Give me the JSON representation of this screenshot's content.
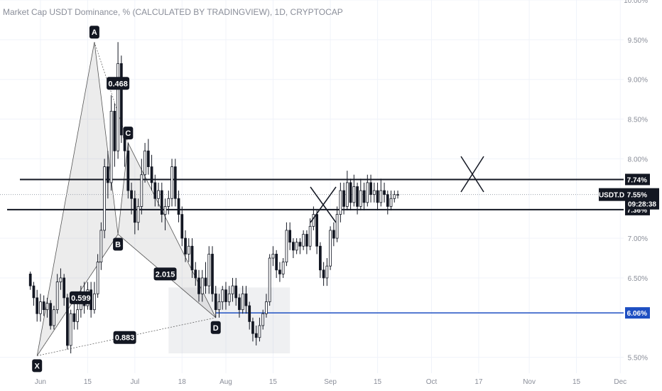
{
  "chart_data": {
    "type": "candlestick",
    "title": "Market Cap USDT Dominance, % (CALCULATED BY TRADINGVIEW), 1D, CRYPTOCAP",
    "symbol": "USDT.D",
    "last_value": "7.55%",
    "countdown": "09:28:38",
    "y_axis": {
      "scale": "linear",
      "range": [
        5.3,
        10.0
      ],
      "ticks": [
        {
          "value": 10.0,
          "label": "10.00%"
        },
        {
          "value": 9.5,
          "label": "9.50%"
        },
        {
          "value": 9.0,
          "label": "9.00%"
        },
        {
          "value": 8.5,
          "label": "8.50%"
        },
        {
          "value": 8.0,
          "label": "8.00%"
        },
        {
          "value": 7.0,
          "label": "7.00%"
        },
        {
          "value": 6.5,
          "label": "6.50%"
        },
        {
          "value": 5.5,
          "label": "5.50%"
        }
      ]
    },
    "x_axis": {
      "range": [
        -9,
        176
      ],
      "ticks": [
        {
          "day": 3,
          "label": "Jun"
        },
        {
          "day": 17,
          "label": "15"
        },
        {
          "day": 31,
          "label": "Jul"
        },
        {
          "day": 45,
          "label": "18"
        },
        {
          "day": 58,
          "label": "Aug"
        },
        {
          "day": 72,
          "label": "15"
        },
        {
          "day": 89,
          "label": "Sep"
        },
        {
          "day": 103,
          "label": "15"
        },
        {
          "day": 119,
          "label": "Oct"
        },
        {
          "day": 133,
          "label": "17"
        },
        {
          "day": 148,
          "label": "Nov"
        },
        {
          "day": 162,
          "label": "15"
        },
        {
          "day": 175,
          "label": "Dec"
        }
      ]
    },
    "levels": [
      {
        "value": 7.74,
        "label": "7.74%",
        "color": "#131722"
      },
      {
        "value": 7.36,
        "label": "7.36%",
        "color": "#131722"
      },
      {
        "value": 6.06,
        "label": "6.06%",
        "color": "#1e4fc2"
      }
    ],
    "harmonic_pattern": {
      "points": [
        {
          "name": "X",
          "day": 2,
          "value": 5.52
        },
        {
          "name": "A",
          "day": 19,
          "value": 9.47
        },
        {
          "name": "B",
          "day": 26,
          "value": 7.05
        },
        {
          "name": "C",
          "day": 29,
          "value": 8.2
        },
        {
          "name": "D",
          "day": 55,
          "value": 6.0
        }
      ],
      "ratios": [
        {
          "label": "0.468",
          "day": 26,
          "value": 8.95
        },
        {
          "label": "0.599",
          "day": 15,
          "value": 6.25
        },
        {
          "label": "2.015",
          "day": 40,
          "value": 6.55
        },
        {
          "label": "0.883",
          "day": 28,
          "value": 5.75
        }
      ]
    },
    "shaded_zone": {
      "day_start": 41,
      "day_end": 77,
      "value_top": 6.38,
      "value_bottom": 5.55
    },
    "candles": [
      [
        6.55,
        6.4,
        6.58,
        6.35
      ],
      [
        6.4,
        6.25,
        6.45,
        6.15
      ],
      [
        6.25,
        6.05,
        6.35,
        5.95
      ],
      [
        6.05,
        6.2,
        6.3,
        5.95
      ],
      [
        6.2,
        6.1,
        6.28,
        6.02
      ],
      [
        6.1,
        6.18,
        6.25,
        6.0
      ],
      [
        6.18,
        5.9,
        6.22,
        5.85
      ],
      [
        5.9,
        6.1,
        6.15,
        5.85
      ],
      [
        6.1,
        6.45,
        6.55,
        6.05
      ],
      [
        6.45,
        6.5,
        6.62,
        6.35
      ],
      [
        6.5,
        6.25,
        6.55,
        6.15
      ],
      [
        6.25,
        5.65,
        6.3,
        5.6
      ],
      [
        5.65,
        6.05,
        6.1,
        5.55
      ],
      [
        6.05,
        5.95,
        6.2,
        5.85
      ],
      [
        5.95,
        6.1,
        6.2,
        5.85
      ],
      [
        6.1,
        6.3,
        6.4,
        6.0
      ],
      [
        6.3,
        6.15,
        6.45,
        6.05
      ],
      [
        6.15,
        6.35,
        6.45,
        6.1
      ],
      [
        6.35,
        6.1,
        6.45,
        6.0
      ],
      [
        6.1,
        6.3,
        6.45,
        6.05
      ],
      [
        6.3,
        6.7,
        6.8,
        6.25
      ],
      [
        6.7,
        7.1,
        7.2,
        6.6
      ],
      [
        7.1,
        7.9,
        8.0,
        7.0
      ],
      [
        7.9,
        7.7,
        8.1,
        7.5
      ],
      [
        7.7,
        8.6,
        8.8,
        7.6
      ],
      [
        8.6,
        8.1,
        8.7,
        7.9
      ],
      [
        8.1,
        9.2,
        9.47,
        8.0
      ],
      [
        9.2,
        8.3,
        9.3,
        8.2
      ],
      [
        8.3,
        8.1,
        8.4,
        7.9
      ],
      [
        8.1,
        7.6,
        8.2,
        7.5
      ],
      [
        7.6,
        7.5,
        7.7,
        7.3
      ],
      [
        7.5,
        7.2,
        7.6,
        7.05
      ],
      [
        7.2,
        7.4,
        7.5,
        7.1
      ],
      [
        7.4,
        7.8,
        8.0,
        7.3
      ],
      [
        7.8,
        8.1,
        8.2,
        7.7
      ],
      [
        8.1,
        7.9,
        8.25,
        7.8
      ],
      [
        7.9,
        7.7,
        8.05,
        7.6
      ],
      [
        7.7,
        7.5,
        7.8,
        7.4
      ],
      [
        7.5,
        7.6,
        7.7,
        7.4
      ],
      [
        7.6,
        7.3,
        7.7,
        7.2
      ],
      [
        7.3,
        7.4,
        7.5,
        7.1
      ],
      [
        7.4,
        7.5,
        7.6,
        7.3
      ],
      [
        7.5,
        7.9,
        8.0,
        7.4
      ],
      [
        7.9,
        7.5,
        8.0,
        7.4
      ],
      [
        7.5,
        7.3,
        7.6,
        7.2
      ],
      [
        7.3,
        7.0,
        7.4,
        6.9
      ],
      [
        7.0,
        6.8,
        7.1,
        6.7
      ],
      [
        6.8,
        6.9,
        7.0,
        6.7
      ],
      [
        6.9,
        6.6,
        7.0,
        6.5
      ],
      [
        6.6,
        6.5,
        6.7,
        6.4
      ],
      [
        6.5,
        6.3,
        6.6,
        6.2
      ],
      [
        6.3,
        6.5,
        6.6,
        6.2
      ],
      [
        6.5,
        6.4,
        6.7,
        6.3
      ],
      [
        6.4,
        6.8,
        6.9,
        6.3
      ],
      [
        6.8,
        6.3,
        6.9,
        6.2
      ],
      [
        6.3,
        6.1,
        6.4,
        6.0
      ],
      [
        6.1,
        6.2,
        6.3,
        6.0
      ],
      [
        6.2,
        6.35,
        6.4,
        6.1
      ],
      [
        6.35,
        6.2,
        6.45,
        6.1
      ],
      [
        6.2,
        6.3,
        6.4,
        6.15
      ],
      [
        6.3,
        6.4,
        6.5,
        6.2
      ],
      [
        6.4,
        6.25,
        6.5,
        6.15
      ],
      [
        6.25,
        6.1,
        6.3,
        6.0
      ],
      [
        6.1,
        6.3,
        6.4,
        6.05
      ],
      [
        6.3,
        6.15,
        6.4,
        6.05
      ],
      [
        6.15,
        5.95,
        6.2,
        5.85
      ],
      [
        5.95,
        5.8,
        6.0,
        5.7
      ],
      [
        5.8,
        5.75,
        5.9,
        5.65
      ],
      [
        5.75,
        5.9,
        6.0,
        5.7
      ],
      [
        5.9,
        6.05,
        6.1,
        5.85
      ],
      [
        6.05,
        6.2,
        6.3,
        6.0
      ],
      [
        6.2,
        6.75,
        6.8,
        6.15
      ],
      [
        6.75,
        6.8,
        6.9,
        6.65
      ],
      [
        6.8,
        6.6,
        6.85,
        6.5
      ],
      [
        6.6,
        6.55,
        6.7,
        6.45
      ],
      [
        6.55,
        6.7,
        6.75,
        6.5
      ],
      [
        6.7,
        7.1,
        7.2,
        6.65
      ],
      [
        7.1,
        6.95,
        7.2,
        6.85
      ],
      [
        6.95,
        6.85,
        7.0,
        6.75
      ],
      [
        6.85,
        6.95,
        7.0,
        6.8
      ],
      [
        6.95,
        6.9,
        7.0,
        6.8
      ],
      [
        6.9,
        7.05,
        7.1,
        6.85
      ],
      [
        7.05,
        6.9,
        7.1,
        6.8
      ],
      [
        6.9,
        7.15,
        7.25,
        6.85
      ],
      [
        7.15,
        7.3,
        7.4,
        7.1
      ],
      [
        7.3,
        6.9,
        7.35,
        6.8
      ],
      [
        6.9,
        6.6,
        6.95,
        6.5
      ],
      [
        6.6,
        6.5,
        6.7,
        6.4
      ],
      [
        6.5,
        6.65,
        6.75,
        6.4
      ],
      [
        6.65,
        7.1,
        7.15,
        6.6
      ],
      [
        7.1,
        7.0,
        7.2,
        6.9
      ],
      [
        7.0,
        7.3,
        7.4,
        6.95
      ],
      [
        7.3,
        7.6,
        7.7,
        7.2
      ],
      [
        7.6,
        7.4,
        7.7,
        7.3
      ],
      [
        7.4,
        7.7,
        7.85,
        7.35
      ],
      [
        7.7,
        7.45,
        7.75,
        7.35
      ],
      [
        7.45,
        7.65,
        7.8,
        7.4
      ],
      [
        7.65,
        7.4,
        7.7,
        7.3
      ],
      [
        7.4,
        7.6,
        7.75,
        7.35
      ],
      [
        7.6,
        7.45,
        7.7,
        7.35
      ],
      [
        7.45,
        7.7,
        7.8,
        7.4
      ],
      [
        7.7,
        7.55,
        7.8,
        7.45
      ],
      [
        7.55,
        7.6,
        7.7,
        7.45
      ],
      [
        7.6,
        7.45,
        7.7,
        7.35
      ],
      [
        7.45,
        7.6,
        7.75,
        7.4
      ],
      [
        7.6,
        7.55,
        7.7,
        7.45
      ],
      [
        7.55,
        7.4,
        7.6,
        7.3
      ],
      [
        7.4,
        7.5,
        7.6,
        7.35
      ],
      [
        7.5,
        7.55,
        7.6,
        7.45
      ],
      [
        7.55,
        7.55,
        7.6,
        7.5
      ]
    ]
  },
  "colors": {
    "candle": "#131722",
    "grid": "#f0f3fa",
    "axis_text": "#8a8e99",
    "level_blue": "#1e4fc2",
    "pattern_fill": "rgba(150,150,150,0.18)",
    "zone_fill": "rgba(180,185,195,0.22)"
  }
}
